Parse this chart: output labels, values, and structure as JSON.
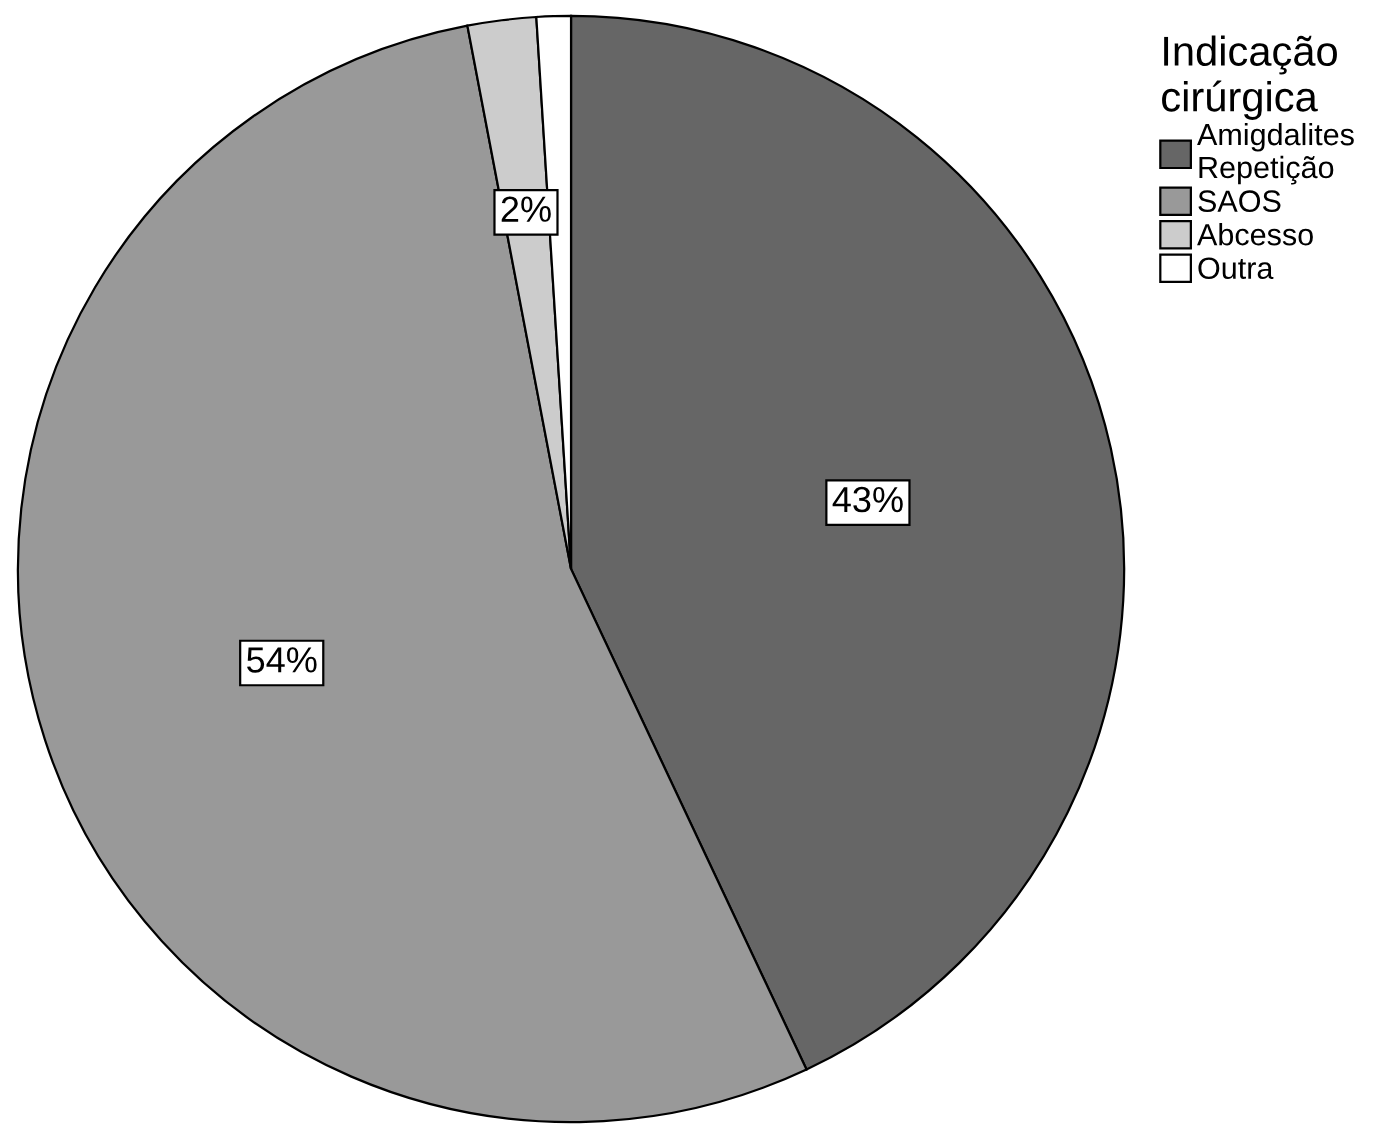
{
  "chart_data": {
    "type": "pie",
    "legend_title": "Indicação cirúrgica",
    "categories": [
      "Amigdalites Repetição",
      "SAOS",
      "Abcesso",
      "Outra"
    ],
    "values": [
      43,
      54,
      2,
      1
    ],
    "colors": [
      "#666666",
      "#999999",
      "#cccccc",
      "#ffffff"
    ],
    "value_labels": [
      "43%",
      "54%",
      "2%",
      null
    ],
    "legend": "top right"
  }
}
